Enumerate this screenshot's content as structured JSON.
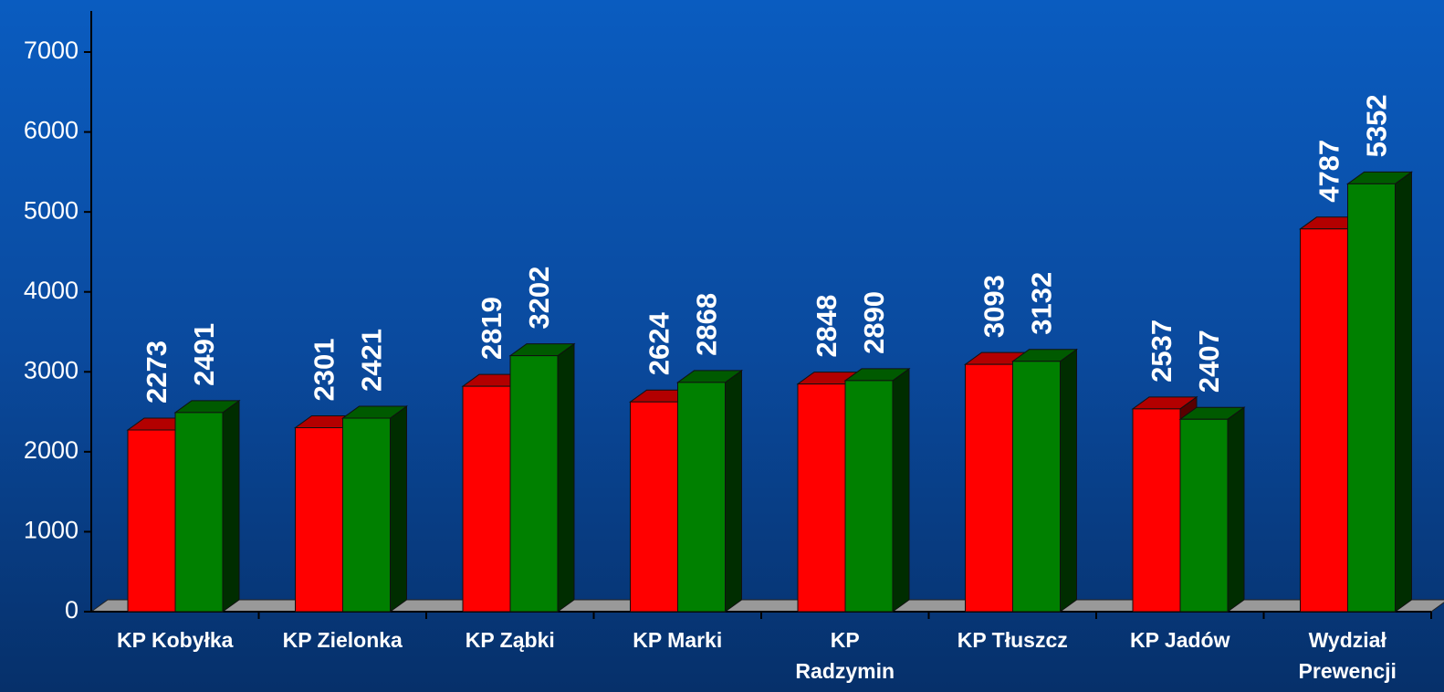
{
  "chart_data": {
    "type": "bar3d",
    "categories": [
      "KP Kobyłka",
      "KP Zielonka",
      "KP Ząbki",
      "KP Marki",
      "KP\nRadzymin",
      "KP Tłuszcz",
      "KP Jadów",
      "Wydział\nPrewencji"
    ],
    "series": [
      {
        "color": "#ff0000",
        "values": [
          2273,
          2301,
          2819,
          2624,
          2848,
          3093,
          2537,
          4787
        ]
      },
      {
        "color": "#008000",
        "values": [
          2491,
          2421,
          3202,
          2868,
          2890,
          3132,
          2407,
          5352
        ]
      }
    ],
    "ylim": [
      0,
      7000
    ],
    "yticks": [
      0,
      1000,
      2000,
      3000,
      4000,
      5000,
      6000,
      7000
    ],
    "grid": false
  }
}
